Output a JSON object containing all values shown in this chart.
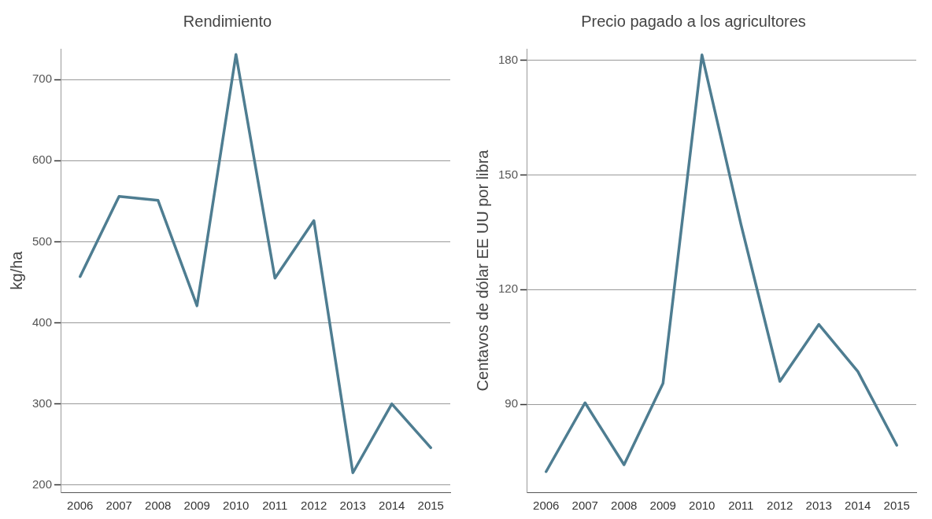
{
  "chart_data": [
    {
      "type": "line",
      "title": "Rendimiento",
      "ylabel": "kg/ha",
      "categories": [
        "2006",
        "2007",
        "2008",
        "2009",
        "2010",
        "2011",
        "2012",
        "2013",
        "2014",
        "2015"
      ],
      "series": [
        {
          "color": "#4e7d91",
          "values": [
            457,
            556,
            551,
            421,
            731,
            455,
            526,
            215,
            300,
            246
          ]
        }
      ],
      "ylim": [
        191,
        738
      ],
      "yticks": [
        200,
        300,
        400,
        500,
        600,
        700
      ],
      "grid": "y",
      "legend": false,
      "marker": "none",
      "line_style": "solid"
    },
    {
      "type": "line",
      "title": "Precio pagado a los agricultores",
      "ylabel": "Centavos de dólar EE UU por libra",
      "categories": [
        "2006",
        "2007",
        "2008",
        "2009",
        "2010",
        "2011",
        "2012",
        "2013",
        "2014",
        "2015"
      ],
      "series": [
        {
          "color": "#4e7d91",
          "values": [
            72.4,
            90.4,
            74.2,
            95.5,
            181.4,
            137.1,
            96,
            110.9,
            98.6,
            79.3
          ]
        }
      ],
      "ylim": [
        67,
        183
      ],
      "yticks": [
        90,
        120,
        150,
        180
      ],
      "grid": "y",
      "legend": false,
      "marker": "none",
      "line_style": "solid"
    }
  ]
}
